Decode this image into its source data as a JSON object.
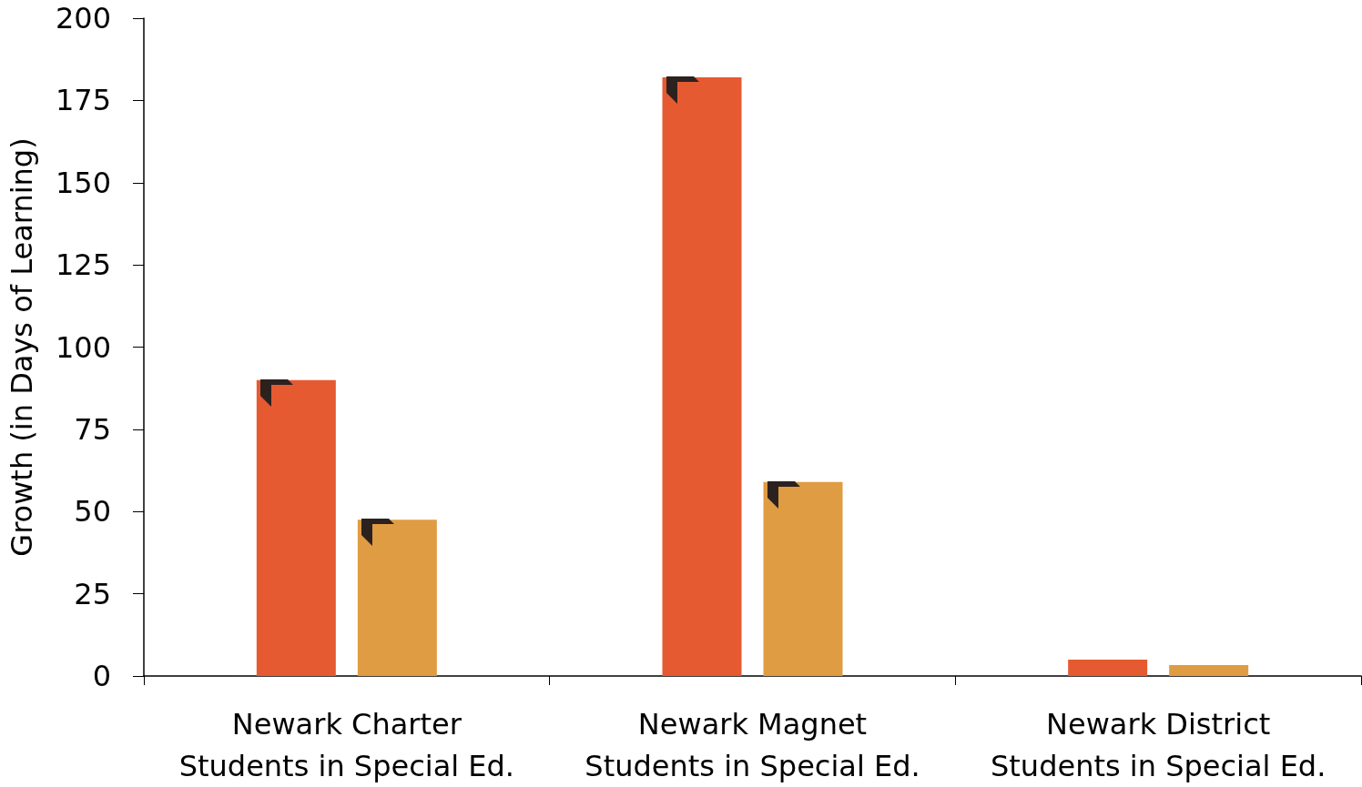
{
  "chart_data": {
    "type": "bar",
    "ylabel": "Growth (in Days of Learning)",
    "categories": [
      "Newark Charter\nStudents in Special Ed.",
      "Newark Magnet\nStudents in Special Ed.",
      "Newark District\nStudents in Special Ed."
    ],
    "series": [
      {
        "color": "#e55a31",
        "values": [
          90,
          182,
          5
        ]
      },
      {
        "color": "#e09c42",
        "values": [
          47.5,
          59,
          3.3
        ]
      }
    ],
    "ylim": [
      0,
      200
    ],
    "yticks": [
      0,
      25,
      50,
      75,
      100,
      125,
      150,
      175,
      200
    ],
    "grid": false
  }
}
